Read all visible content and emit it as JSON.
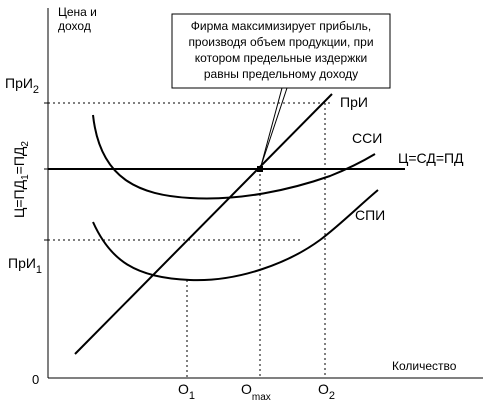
{
  "diagram": {
    "y_axis_title_line1": "Цена и",
    "y_axis_title_line2": "доход",
    "x_axis_title": "Количество",
    "origin_label": "0",
    "pr_i2": {
      "base": "ПрИ",
      "sub": "2"
    },
    "pr_i1": {
      "base": "ПрИ",
      "sub": "1"
    },
    "vertical_left_label": {
      "main": "Ц=ПД",
      "sub1": "1",
      "middle": "=ПД",
      "sub2": "2"
    },
    "price_line_label": "Ц=СД=ПД",
    "mc_label": "ПрИ",
    "atc_label": "ССИ",
    "avc_label": "СПИ",
    "o1": {
      "base": "О",
      "sub": "1"
    },
    "omax": {
      "base": "О",
      "sub": "max"
    },
    "o2": {
      "base": "О",
      "sub": "2"
    },
    "callout_lines": [
      "Фирма максимизирует прибыль,",
      "производя объем продукции, при",
      "котором предельные издержки",
      "равны предельному доходу"
    ]
  }
}
